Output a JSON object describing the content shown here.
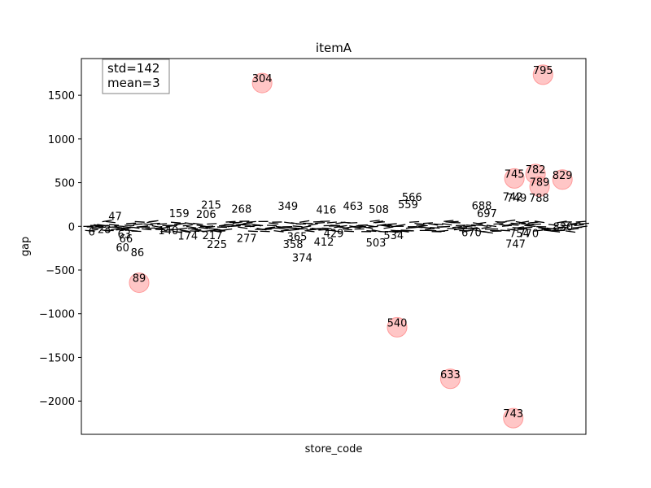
{
  "chart_data": {
    "type": "scatter",
    "title": "itemA",
    "xlabel": "store_code",
    "ylabel": "gap",
    "ylim": [
      -2380,
      1920
    ],
    "xlim": [
      -12,
      870
    ],
    "y_ticks": [
      -2000,
      -1500,
      -1000,
      -500,
      0,
      500,
      1000,
      1500
    ],
    "y_tick_labels": [
      "−2000",
      "−1500",
      "−1000",
      "−500",
      "0",
      "500",
      "1000",
      "1500"
    ],
    "grid": false,
    "stats_box": {
      "position": "top-left",
      "lines": [
        "std=142",
        "mean=3"
      ]
    },
    "marker_color": "#ffb3b3",
    "outliers": [
      {
        "label": "304",
        "x": 304,
        "y": 1640
      },
      {
        "label": "795",
        "x": 795,
        "y": 1735
      },
      {
        "label": "745",
        "x": 745,
        "y": 548
      },
      {
        "label": "782",
        "x": 782,
        "y": 600
      },
      {
        "label": "789",
        "x": 789,
        "y": 455
      },
      {
        "label": "829",
        "x": 829,
        "y": 535
      },
      {
        "label": "89",
        "x": 89,
        "y": -645
      },
      {
        "label": "540",
        "x": 540,
        "y": -1155
      },
      {
        "label": "633",
        "x": 633,
        "y": -1745
      },
      {
        "label": "743",
        "x": 743,
        "y": -2195
      }
    ],
    "labeled_points": [
      {
        "label": "566",
        "x": 566,
        "y": 330
      },
      {
        "label": "742",
        "x": 742,
        "y": 335
      },
      {
        "label": "749",
        "x": 749,
        "y": 318
      },
      {
        "label": "788",
        "x": 788,
        "y": 318
      },
      {
        "label": "688",
        "x": 688,
        "y": 232
      },
      {
        "label": "559",
        "x": 559,
        "y": 245
      },
      {
        "label": "215",
        "x": 215,
        "y": 240
      },
      {
        "label": "268",
        "x": 268,
        "y": 195
      },
      {
        "label": "349",
        "x": 349,
        "y": 225
      },
      {
        "label": "463",
        "x": 463,
        "y": 225
      },
      {
        "label": "416",
        "x": 416,
        "y": 185
      },
      {
        "label": "508",
        "x": 508,
        "y": 190
      },
      {
        "label": "159",
        "x": 159,
        "y": 140
      },
      {
        "label": "206",
        "x": 206,
        "y": 135
      },
      {
        "label": "697",
        "x": 697,
        "y": 140
      },
      {
        "label": "47",
        "x": 47,
        "y": 110
      },
      {
        "label": "6",
        "x": 6,
        "y": -65
      },
      {
        "label": "28",
        "x": 28,
        "y": -40
      },
      {
        "label": "63",
        "x": 63,
        "y": -95
      },
      {
        "label": "66",
        "x": 66,
        "y": -145
      },
      {
        "label": "60",
        "x": 60,
        "y": -250
      },
      {
        "label": "86",
        "x": 86,
        "y": -305
      },
      {
        "label": "140",
        "x": 140,
        "y": -55
      },
      {
        "label": "174",
        "x": 174,
        "y": -115
      },
      {
        "label": "217",
        "x": 217,
        "y": -110
      },
      {
        "label": "225",
        "x": 225,
        "y": -210
      },
      {
        "label": "277",
        "x": 277,
        "y": -140
      },
      {
        "label": "365",
        "x": 365,
        "y": -125
      },
      {
        "label": "358",
        "x": 358,
        "y": -210
      },
      {
        "label": "374",
        "x": 374,
        "y": -365
      },
      {
        "label": "412",
        "x": 412,
        "y": -185
      },
      {
        "label": "429",
        "x": 429,
        "y": -85
      },
      {
        "label": "503",
        "x": 503,
        "y": -195
      },
      {
        "label": "534",
        "x": 534,
        "y": -110
      },
      {
        "label": "670",
        "x": 670,
        "y": -75
      },
      {
        "label": "754",
        "x": 754,
        "y": -85
      },
      {
        "label": "770",
        "x": 770,
        "y": -85
      },
      {
        "label": "747",
        "x": 747,
        "y": -205
      },
      {
        "label": "830",
        "x": 830,
        "y": -10
      }
    ]
  }
}
